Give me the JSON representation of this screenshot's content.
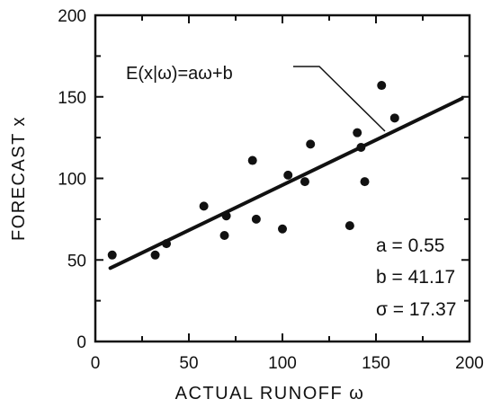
{
  "chart_data": {
    "type": "scatter",
    "xlabel": "ACTUAL RUNOFF ω",
    "ylabel": "FORECAST x",
    "xlim": [
      0,
      200
    ],
    "ylim": [
      0,
      200
    ],
    "xticks": [
      0,
      50,
      100,
      150,
      200
    ],
    "yticks": [
      0,
      50,
      100,
      150,
      200
    ],
    "xtick_labels": [
      "0",
      "50",
      "100",
      "150",
      "200"
    ],
    "ytick_labels": [
      "0",
      "50",
      "100",
      "150",
      "200"
    ],
    "grid": false,
    "points": [
      {
        "x": 9,
        "y": 53
      },
      {
        "x": 32,
        "y": 53
      },
      {
        "x": 38,
        "y": 60
      },
      {
        "x": 58,
        "y": 83
      },
      {
        "x": 69,
        "y": 65
      },
      {
        "x": 70,
        "y": 77
      },
      {
        "x": 84,
        "y": 111
      },
      {
        "x": 86,
        "y": 75
      },
      {
        "x": 100,
        "y": 69
      },
      {
        "x": 103,
        "y": 102
      },
      {
        "x": 112,
        "y": 98
      },
      {
        "x": 115,
        "y": 121
      },
      {
        "x": 136,
        "y": 71
      },
      {
        "x": 140,
        "y": 128
      },
      {
        "x": 142,
        "y": 119
      },
      {
        "x": 144,
        "y": 98
      },
      {
        "x": 153,
        "y": 157
      },
      {
        "x": 160,
        "y": 137
      }
    ],
    "fit_line": {
      "label": "E(x|ω)=aω+b",
      "x_start": 8,
      "y_start": 45,
      "x_end": 196,
      "y_end": 149
    },
    "stats": [
      {
        "text": "a = 0.55"
      },
      {
        "text": "b = 41.17"
      },
      {
        "text": "σ = 17.37"
      }
    ]
  }
}
